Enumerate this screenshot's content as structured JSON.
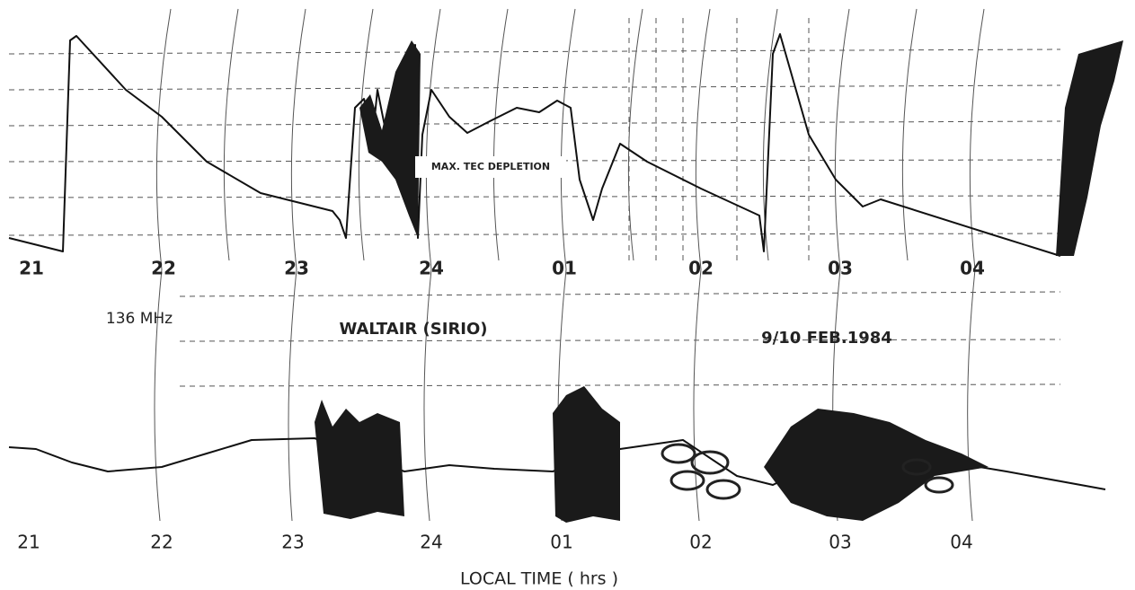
{
  "top_axis": {
    "labels": [
      "21",
      "22",
      "23",
      "24",
      "01",
      "02",
      "03",
      "04"
    ]
  },
  "bottom_axis": {
    "labels": [
      "21",
      "22",
      "23",
      "24",
      "01",
      "02",
      "03",
      "04"
    ],
    "title": "LOCAL TIME  ( hrs )"
  },
  "annotations": {
    "frequency": "136 MHz",
    "station": "WALTAIR  (SIRIO)",
    "date": "9/10 FEB.1984",
    "depletion": "MAX. TEC DEPLETION"
  }
}
